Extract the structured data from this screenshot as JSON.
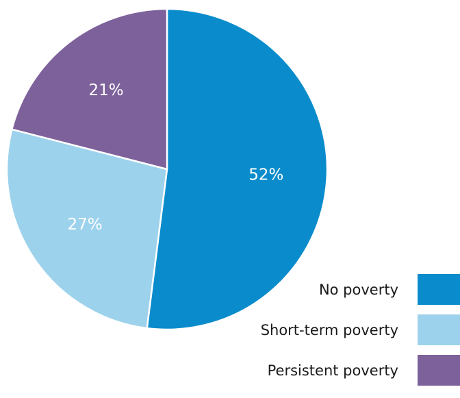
{
  "chart_data": {
    "type": "pie",
    "slices": [
      {
        "label": "No poverty",
        "value": 52,
        "display": "52%",
        "color": "#0a8ccc"
      },
      {
        "label": "Short-term poverty",
        "value": 27,
        "display": "27%",
        "color": "#9dd2ec"
      },
      {
        "label": "Persistent poverty",
        "value": 21,
        "display": "21%",
        "color": "#7d619b"
      }
    ],
    "start_angle_deg": 0,
    "direction": "clockwise",
    "legend_position": "bottom-right",
    "title": ""
  }
}
